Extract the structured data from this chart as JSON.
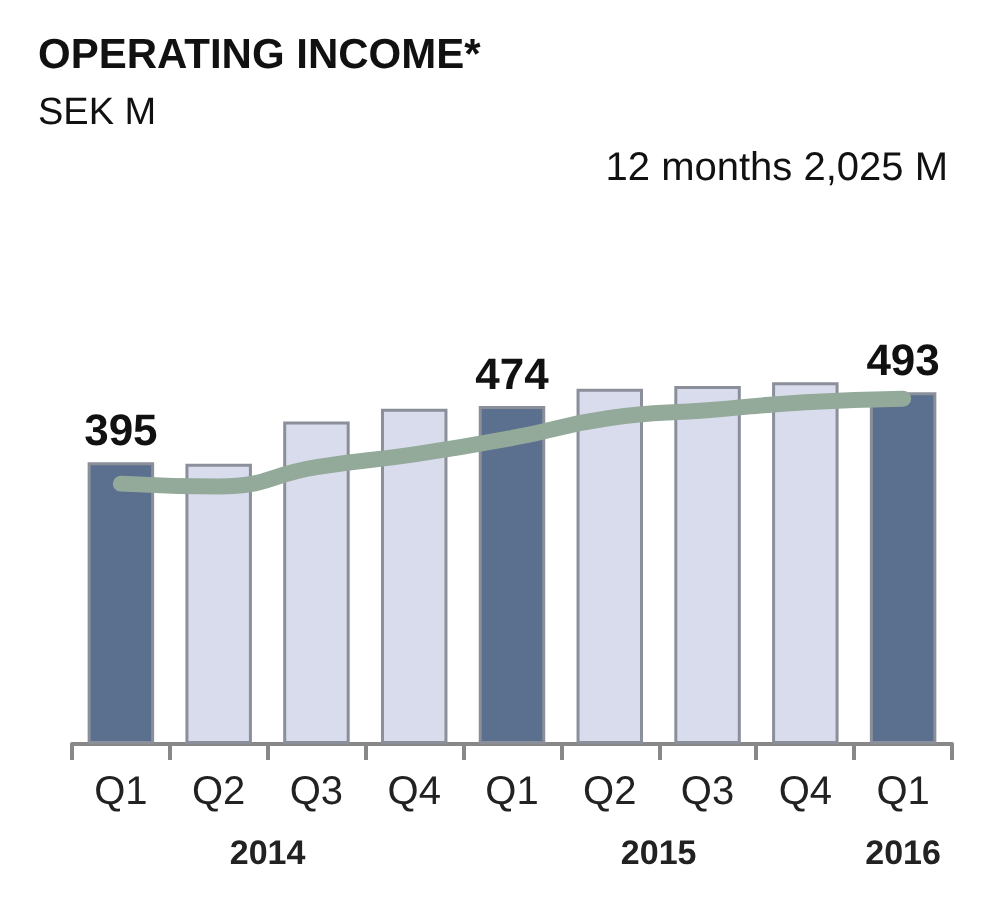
{
  "chart_data": {
    "type": "bar",
    "title": "OPERATING INCOME*",
    "subtitle": "SEK M",
    "annotations": [
      "12 months 2,025 M",
      "2014",
      "2015",
      "2016"
    ],
    "categories": [
      "Q1",
      "Q2",
      "Q3",
      "Q4",
      "Q1",
      "Q2",
      "Q3",
      "Q4",
      "Q1"
    ],
    "series": [
      {
        "values": [
          395,
          393,
          452,
          470,
          474,
          498,
          502,
          507,
          493
        ],
        "colors": [
          "#5b6f8e",
          "#d9dcec",
          "#d9dcec",
          "#d9dcec",
          "#5b6f8e",
          "#d9dcec",
          "#d9dcec",
          "#d9dcec",
          "#5b6f8e"
        ],
        "value_labels": [
          "395",
          null,
          null,
          null,
          "474",
          null,
          null,
          null,
          "493"
        ]
      },
      {
        "type": "line",
        "color": "#93aa9a",
        "values": [
          365,
          361,
          388,
          406,
          429,
          457,
          468,
          479,
          484
        ]
      }
    ]
  }
}
